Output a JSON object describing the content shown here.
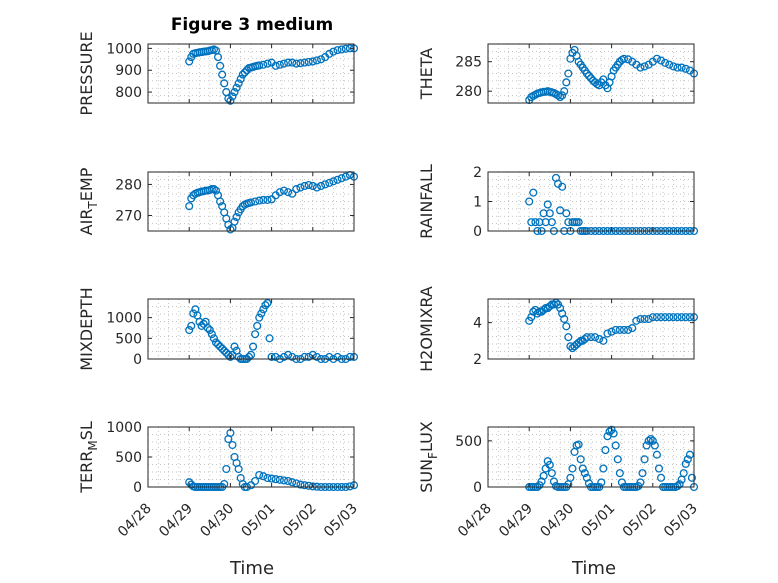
{
  "figure": {
    "title": "Figure 3 medium"
  },
  "x_axis": {
    "tick_labels": [
      "04/28",
      "04/29",
      "04/30",
      "05/01",
      "05/02",
      "05/03"
    ],
    "bottom_label": "Time",
    "range_days": [
      0,
      5
    ]
  },
  "colors": {
    "marker": "#0072BD",
    "axis": "#262626",
    "grid": "#b0b0b0",
    "background": "#ffffff"
  },
  "chart_data": [
    {
      "type": "scatter",
      "panel": "PRESSURE",
      "ylabel": "PRESSURE",
      "ylabel_sub": "",
      "ylim": [
        750,
        1020
      ],
      "yticks": [
        800,
        900,
        1000
      ],
      "grid": true,
      "marker": "circle",
      "show_xticks": false,
      "x_days": [
        1.0,
        1.05,
        1.1,
        1.15,
        1.2,
        1.25,
        1.3,
        1.35,
        1.4,
        1.45,
        1.5,
        1.55,
        1.6,
        1.65,
        1.7,
        1.75,
        1.8,
        1.85,
        1.9,
        1.95,
        2.0,
        2.05,
        2.1,
        2.15,
        2.2,
        2.25,
        2.3,
        2.35,
        2.4,
        2.45,
        2.5,
        2.55,
        2.6,
        2.65,
        2.7,
        2.8,
        2.9,
        3.0,
        3.1,
        3.2,
        3.3,
        3.4,
        3.5,
        3.6,
        3.7,
        3.8,
        3.9,
        4.0,
        4.1,
        4.2,
        4.3,
        4.4,
        4.5,
        4.6,
        4.7,
        4.8,
        4.9,
        5.0
      ],
      "y": [
        940,
        960,
        975,
        978,
        980,
        982,
        983,
        985,
        986,
        987,
        990,
        992,
        995,
        990,
        960,
        920,
        880,
        840,
        800,
        770,
        760,
        780,
        800,
        820,
        840,
        860,
        880,
        890,
        900,
        910,
        912,
        915,
        918,
        920,
        922,
        925,
        930,
        935,
        920,
        925,
        930,
        935,
        935,
        930,
        932,
        935,
        938,
        940,
        945,
        950,
        960,
        975,
        985,
        992,
        995,
        998,
        1000,
        1000
      ]
    },
    {
      "type": "scatter",
      "panel": "THETA",
      "ylabel": "THETA",
      "ylabel_sub": "",
      "ylim": [
        278,
        288
      ],
      "yticks": [
        280,
        285
      ],
      "grid": true,
      "marker": "circle",
      "show_xticks": false,
      "x_days": [
        1.0,
        1.05,
        1.1,
        1.15,
        1.2,
        1.25,
        1.3,
        1.35,
        1.4,
        1.45,
        1.5,
        1.55,
        1.6,
        1.65,
        1.7,
        1.75,
        1.8,
        1.85,
        1.9,
        1.95,
        2.0,
        2.05,
        2.1,
        2.15,
        2.2,
        2.25,
        2.3,
        2.35,
        2.4,
        2.45,
        2.5,
        2.55,
        2.6,
        2.65,
        2.7,
        2.75,
        2.8,
        2.85,
        2.9,
        2.95,
        3.0,
        3.05,
        3.1,
        3.15,
        3.2,
        3.25,
        3.3,
        3.4,
        3.5,
        3.6,
        3.7,
        3.8,
        3.9,
        4.0,
        4.1,
        4.2,
        4.3,
        4.4,
        4.5,
        4.6,
        4.7,
        4.8,
        4.9,
        5.0
      ],
      "y": [
        278.5,
        279.0,
        279.2,
        279.4,
        279.6,
        279.7,
        279.8,
        279.9,
        279.9,
        280.0,
        279.9,
        279.8,
        279.7,
        279.5,
        279.3,
        279.0,
        279.3,
        280.0,
        281.5,
        283.0,
        285.5,
        286.5,
        287.0,
        286.0,
        285.0,
        284.5,
        284.0,
        283.5,
        283.0,
        282.6,
        282.2,
        281.8,
        281.5,
        281.2,
        281.0,
        281.5,
        282.0,
        281.0,
        280.5,
        281.5,
        282.5,
        283.5,
        284.0,
        284.5,
        285.0,
        285.3,
        285.5,
        285.4,
        285.0,
        284.5,
        284.0,
        284.2,
        284.5,
        285.0,
        285.5,
        285.2,
        284.8,
        284.5,
        284.2,
        284.0,
        284.0,
        283.8,
        283.5,
        283.0
      ]
    },
    {
      "type": "scatter",
      "panel": "AIR_TEMP",
      "ylabel": "AIR",
      "ylabel_sub": "T",
      "ylabel_tail": "EMP",
      "ylim": [
        265,
        284
      ],
      "yticks": [
        270,
        280
      ],
      "grid": true,
      "marker": "circle",
      "show_xticks": false,
      "x_days": [
        1.0,
        1.05,
        1.1,
        1.15,
        1.2,
        1.25,
        1.3,
        1.35,
        1.4,
        1.45,
        1.5,
        1.55,
        1.6,
        1.65,
        1.7,
        1.75,
        1.8,
        1.85,
        1.9,
        1.95,
        2.0,
        2.05,
        2.1,
        2.15,
        2.2,
        2.25,
        2.3,
        2.35,
        2.4,
        2.45,
        2.5,
        2.6,
        2.7,
        2.8,
        2.9,
        3.0,
        3.1,
        3.2,
        3.3,
        3.4,
        3.5,
        3.6,
        3.7,
        3.8,
        3.9,
        4.0,
        4.1,
        4.2,
        4.3,
        4.4,
        4.5,
        4.6,
        4.7,
        4.8,
        4.9,
        5.0
      ],
      "y": [
        273.0,
        275.5,
        276.5,
        277.0,
        277.3,
        277.5,
        277.7,
        277.8,
        278.0,
        278.0,
        278.2,
        278.5,
        278.5,
        278.0,
        276.5,
        274.5,
        273.0,
        271.0,
        269.0,
        267.0,
        265.5,
        266.0,
        268.0,
        269.5,
        271.0,
        272.0,
        273.0,
        273.5,
        273.8,
        274.0,
        274.2,
        274.5,
        274.8,
        275.0,
        275.0,
        275.2,
        276.5,
        277.5,
        278.0,
        277.5,
        277.0,
        278.5,
        279.0,
        279.5,
        279.8,
        279.5,
        279.0,
        279.5,
        280.0,
        280.5,
        281.0,
        281.5,
        282.0,
        282.5,
        283.0,
        282.5
      ]
    },
    {
      "type": "scatter",
      "panel": "RAINFALL",
      "ylabel": "RAINFALL",
      "ylabel_sub": "",
      "ylim": [
        0,
        2
      ],
      "yticks": [
        0,
        1,
        2
      ],
      "grid": true,
      "marker": "circle",
      "show_xticks": false,
      "x_days": [
        1.0,
        1.05,
        1.1,
        1.15,
        1.2,
        1.25,
        1.3,
        1.35,
        1.4,
        1.45,
        1.5,
        1.55,
        1.6,
        1.65,
        1.7,
        1.75,
        1.8,
        1.85,
        1.9,
        1.95,
        2.0,
        2.05,
        2.1,
        2.15,
        2.2,
        2.25,
        2.3,
        2.35,
        2.4,
        2.5,
        2.6,
        2.7,
        2.8,
        2.9,
        3.0,
        3.1,
        3.2,
        3.3,
        3.4,
        3.5,
        3.6,
        3.7,
        3.8,
        3.9,
        4.0,
        4.1,
        4.2,
        4.3,
        4.4,
        4.5,
        4.6,
        4.7,
        4.8,
        4.9,
        5.0
      ],
      "y": [
        1.0,
        0.3,
        1.3,
        0.3,
        0.0,
        0.3,
        0.0,
        0.6,
        0.3,
        0.9,
        0.6,
        0.3,
        0.0,
        1.8,
        1.6,
        0.7,
        1.5,
        0.0,
        0.6,
        0.3,
        0.0,
        0.3,
        0.3,
        0.3,
        0.3,
        0.0,
        0.0,
        0.0,
        0.0,
        0.0,
        0.0,
        0.0,
        0.0,
        0.0,
        0.0,
        0.0,
        0.0,
        0.0,
        0.0,
        0.0,
        0.0,
        0.0,
        0.0,
        0.0,
        0.0,
        0.0,
        0.0,
        0.0,
        0.0,
        0.0,
        0.0,
        0.0,
        0.0,
        0.0,
        0.0
      ]
    },
    {
      "type": "scatter",
      "panel": "MIXDEPTH",
      "ylabel": "MIXDEPTH",
      "ylabel_sub": "",
      "ylim": [
        0,
        1450
      ],
      "yticks": [
        0,
        500,
        1000
      ],
      "grid": true,
      "marker": "circle",
      "show_xticks": false,
      "x_days": [
        1.0,
        1.05,
        1.1,
        1.15,
        1.2,
        1.25,
        1.3,
        1.35,
        1.4,
        1.45,
        1.5,
        1.55,
        1.6,
        1.65,
        1.7,
        1.75,
        1.8,
        1.85,
        1.9,
        1.95,
        2.0,
        2.05,
        2.1,
        2.15,
        2.2,
        2.25,
        2.3,
        2.35,
        2.4,
        2.45,
        2.5,
        2.55,
        2.6,
        2.65,
        2.7,
        2.75,
        2.8,
        2.85,
        2.9,
        2.95,
        3.0,
        3.1,
        3.2,
        3.3,
        3.4,
        3.5,
        3.6,
        3.7,
        3.8,
        3.9,
        4.0,
        4.1,
        4.2,
        4.3,
        4.4,
        4.5,
        4.6,
        4.7,
        4.8,
        4.9,
        5.0
      ],
      "y": [
        700,
        800,
        1100,
        1200,
        1050,
        900,
        800,
        850,
        900,
        750,
        700,
        600,
        500,
        400,
        350,
        300,
        250,
        200,
        150,
        100,
        50,
        100,
        300,
        200,
        50,
        0,
        0,
        0,
        0,
        50,
        100,
        300,
        600,
        800,
        1000,
        1100,
        1200,
        1300,
        1350,
        500,
        50,
        50,
        0,
        50,
        100,
        50,
        0,
        0,
        50,
        50,
        100,
        50,
        0,
        0,
        50,
        0,
        50,
        0,
        0,
        50,
        50
      ]
    },
    {
      "type": "scatter",
      "panel": "H2OMIXRA",
      "ylabel": "H2OMIXRA",
      "ylabel_sub": "",
      "ylim": [
        2,
        5.3
      ],
      "yticks": [
        2,
        4
      ],
      "grid": true,
      "marker": "circle",
      "show_xticks": false,
      "x_days": [
        1.0,
        1.05,
        1.1,
        1.15,
        1.2,
        1.25,
        1.3,
        1.35,
        1.4,
        1.45,
        1.5,
        1.55,
        1.6,
        1.65,
        1.7,
        1.75,
        1.8,
        1.85,
        1.9,
        1.95,
        2.0,
        2.05,
        2.1,
        2.15,
        2.2,
        2.25,
        2.3,
        2.35,
        2.4,
        2.5,
        2.6,
        2.7,
        2.8,
        2.9,
        3.0,
        3.1,
        3.2,
        3.3,
        3.4,
        3.5,
        3.6,
        3.7,
        3.8,
        3.9,
        4.0,
        4.1,
        4.2,
        4.3,
        4.4,
        4.5,
        4.6,
        4.7,
        4.8,
        4.9,
        5.0
      ],
      "y": [
        4.1,
        4.3,
        4.6,
        4.7,
        4.5,
        4.6,
        4.6,
        4.7,
        4.8,
        4.8,
        4.9,
        5.0,
        5.0,
        5.1,
        5.0,
        4.8,
        4.5,
        4.2,
        3.8,
        3.2,
        2.7,
        2.6,
        2.7,
        2.8,
        2.9,
        3.0,
        3.0,
        3.1,
        3.2,
        3.2,
        3.2,
        3.1,
        3.0,
        3.4,
        3.5,
        3.6,
        3.6,
        3.6,
        3.6,
        3.7,
        4.1,
        4.2,
        4.2,
        4.2,
        4.3,
        4.3,
        4.3,
        4.3,
        4.3,
        4.3,
        4.3,
        4.3,
        4.3,
        4.3,
        4.3
      ]
    },
    {
      "type": "scatter",
      "panel": "TERR_MSL",
      "ylabel": "TERR",
      "ylabel_sub": "M",
      "ylabel_tail": "SL",
      "ylim": [
        0,
        1000
      ],
      "yticks": [
        0,
        500,
        1000
      ],
      "grid": true,
      "marker": "circle",
      "show_xticks": true,
      "x_days": [
        1.0,
        1.05,
        1.1,
        1.15,
        1.2,
        1.25,
        1.3,
        1.35,
        1.4,
        1.45,
        1.5,
        1.55,
        1.6,
        1.65,
        1.7,
        1.75,
        1.8,
        1.85,
        1.9,
        1.95,
        2.0,
        2.05,
        2.1,
        2.15,
        2.2,
        2.25,
        2.3,
        2.35,
        2.4,
        2.5,
        2.6,
        2.7,
        2.8,
        2.9,
        3.0,
        3.1,
        3.2,
        3.3,
        3.4,
        3.5,
        3.6,
        3.7,
        3.8,
        3.9,
        4.0,
        4.1,
        4.2,
        4.3,
        4.4,
        4.5,
        4.6,
        4.7,
        4.8,
        4.9,
        5.0
      ],
      "y": [
        80,
        40,
        10,
        0,
        0,
        0,
        0,
        0,
        0,
        0,
        0,
        0,
        0,
        0,
        0,
        0,
        0,
        50,
        300,
        800,
        900,
        700,
        500,
        400,
        300,
        150,
        50,
        0,
        0,
        30,
        100,
        200,
        180,
        150,
        140,
        130,
        120,
        110,
        100,
        80,
        60,
        40,
        30,
        20,
        10,
        5,
        0,
        0,
        0,
        0,
        0,
        0,
        0,
        10,
        30
      ]
    },
    {
      "type": "scatter",
      "panel": "SUN_FLUX",
      "ylabel": "SUN",
      "ylabel_sub": "F",
      "ylabel_tail": "LUX",
      "ylim": [
        0,
        650
      ],
      "yticks": [
        0,
        500
      ],
      "grid": true,
      "marker": "circle",
      "show_xticks": true,
      "x_days": [
        1.0,
        1.05,
        1.1,
        1.15,
        1.2,
        1.25,
        1.3,
        1.35,
        1.4,
        1.45,
        1.5,
        1.55,
        1.6,
        1.65,
        1.7,
        1.75,
        1.8,
        1.85,
        1.9,
        1.95,
        2.0,
        2.05,
        2.1,
        2.15,
        2.2,
        2.25,
        2.3,
        2.35,
        2.4,
        2.45,
        2.5,
        2.55,
        2.6,
        2.65,
        2.7,
        2.75,
        2.8,
        2.85,
        2.9,
        2.95,
        3.0,
        3.05,
        3.1,
        3.15,
        3.2,
        3.25,
        3.3,
        3.35,
        3.4,
        3.45,
        3.5,
        3.55,
        3.6,
        3.65,
        3.7,
        3.75,
        3.8,
        3.85,
        3.9,
        3.95,
        4.0,
        4.05,
        4.1,
        4.15,
        4.2,
        4.25,
        4.3,
        4.35,
        4.4,
        4.45,
        4.5,
        4.55,
        4.6,
        4.65,
        4.7,
        4.75,
        4.8,
        4.85,
        4.9,
        4.95,
        5.0
      ],
      "y": [
        0,
        0,
        0,
        0,
        0,
        20,
        60,
        120,
        200,
        280,
        240,
        150,
        60,
        10,
        0,
        0,
        0,
        0,
        0,
        30,
        100,
        200,
        380,
        450,
        460,
        300,
        200,
        150,
        100,
        40,
        0,
        0,
        0,
        0,
        0,
        50,
        200,
        400,
        550,
        600,
        620,
        580,
        450,
        300,
        150,
        50,
        0,
        0,
        0,
        0,
        0,
        0,
        0,
        10,
        50,
        150,
        300,
        450,
        500,
        520,
        500,
        450,
        350,
        200,
        100,
        0,
        0,
        0,
        0,
        0,
        0,
        0,
        10,
        30,
        80,
        150,
        250,
        300,
        350,
        100,
        0
      ]
    }
  ]
}
